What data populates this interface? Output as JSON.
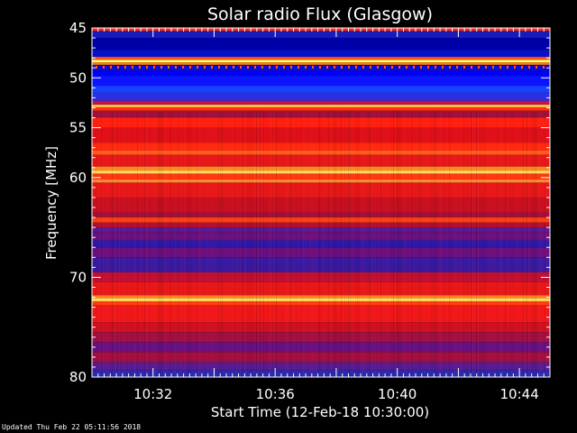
{
  "chart_data": {
    "type": "heatmap",
    "title": "Solar radio Flux (Glasgow)",
    "xlabel": "Start Time (12-Feb-18 10:30:00)",
    "ylabel": "Frequency [MHz]",
    "x_range_minutes": [
      0,
      15
    ],
    "ylim": [
      45,
      80
    ],
    "x_ticks": [
      {
        "minute": 2,
        "label": "10:32"
      },
      {
        "minute": 6,
        "label": "10:36"
      },
      {
        "minute": 10,
        "label": "10:40"
      },
      {
        "minute": 14,
        "label": "10:44"
      }
    ],
    "y_ticks": [
      {
        "value": 45,
        "label": "45"
      },
      {
        "value": 50,
        "label": "50"
      },
      {
        "value": 55,
        "label": "55"
      },
      {
        "value": 60,
        "label": "60"
      },
      {
        "value": 70,
        "label": "70"
      },
      {
        "value": 80,
        "label": "80"
      }
    ],
    "frequency_bands": [
      {
        "from": 45.0,
        "to": 45.3,
        "color": "#ff2a10"
      },
      {
        "from": 45.3,
        "to": 46.0,
        "color": "#1a1ab8"
      },
      {
        "from": 46.0,
        "to": 47.2,
        "color": "#0000a8"
      },
      {
        "from": 47.2,
        "to": 47.9,
        "color": "#0a10c8"
      },
      {
        "from": 47.9,
        "to": 48.2,
        "color": "#ff5010"
      },
      {
        "from": 48.2,
        "to": 48.45,
        "color": "#ffff70"
      },
      {
        "from": 48.45,
        "to": 48.7,
        "color": "#ff7a10"
      },
      {
        "from": 48.7,
        "to": 49.4,
        "color": "#0a0ad0"
      },
      {
        "from": 49.4,
        "to": 49.8,
        "color": "#0000ff"
      },
      {
        "from": 49.8,
        "to": 50.8,
        "color": "#0a14ff"
      },
      {
        "from": 50.8,
        "to": 51.5,
        "color": "#1840ff"
      },
      {
        "from": 51.5,
        "to": 52.3,
        "color": "#2a30e0"
      },
      {
        "from": 52.3,
        "to": 52.7,
        "color": "#c01050"
      },
      {
        "from": 52.7,
        "to": 52.95,
        "color": "#ffd040"
      },
      {
        "from": 52.95,
        "to": 53.3,
        "color": "#ff3010"
      },
      {
        "from": 53.3,
        "to": 54.0,
        "color": "#a0103a"
      },
      {
        "from": 54.0,
        "to": 55.0,
        "color": "#ff2010"
      },
      {
        "from": 55.0,
        "to": 56.5,
        "color": "#e01018"
      },
      {
        "from": 56.5,
        "to": 57.3,
        "color": "#ff2a10"
      },
      {
        "from": 57.3,
        "to": 57.7,
        "color": "#ff6018"
      },
      {
        "from": 57.7,
        "to": 58.9,
        "color": "#e81818"
      },
      {
        "from": 58.9,
        "to": 59.3,
        "color": "#ff8a20"
      },
      {
        "from": 59.3,
        "to": 59.6,
        "color": "#ffe060"
      },
      {
        "from": 59.6,
        "to": 60.2,
        "color": "#ff3810"
      },
      {
        "from": 60.2,
        "to": 60.5,
        "color": "#ff9030"
      },
      {
        "from": 60.5,
        "to": 62.0,
        "color": "#e81818"
      },
      {
        "from": 62.0,
        "to": 63.5,
        "color": "#c81020"
      },
      {
        "from": 63.5,
        "to": 64.0,
        "color": "#a0103a"
      },
      {
        "from": 64.0,
        "to": 64.5,
        "color": "#ff4010"
      },
      {
        "from": 64.5,
        "to": 65.0,
        "color": "#b01030"
      },
      {
        "from": 65.0,
        "to": 65.5,
        "color": "#5a1a90"
      },
      {
        "from": 65.5,
        "to": 66.3,
        "color": "#6a1080"
      },
      {
        "from": 66.3,
        "to": 67.0,
        "color": "#2a1aa8"
      },
      {
        "from": 67.0,
        "to": 68.0,
        "color": "#6a1080"
      },
      {
        "from": 68.0,
        "to": 69.5,
        "color": "#3a1aa0"
      },
      {
        "from": 69.5,
        "to": 70.5,
        "color": "#c01030"
      },
      {
        "from": 70.5,
        "to": 71.8,
        "color": "#e81818"
      },
      {
        "from": 71.8,
        "to": 72.1,
        "color": "#ff8a20"
      },
      {
        "from": 72.1,
        "to": 72.4,
        "color": "#ffe060"
      },
      {
        "from": 72.4,
        "to": 72.8,
        "color": "#ff4010"
      },
      {
        "from": 72.8,
        "to": 74.5,
        "color": "#f01818"
      },
      {
        "from": 74.5,
        "to": 75.5,
        "color": "#d01020"
      },
      {
        "from": 75.5,
        "to": 76.5,
        "color": "#a01040"
      },
      {
        "from": 76.5,
        "to": 77.5,
        "color": "#6a1080"
      },
      {
        "from": 77.5,
        "to": 78.5,
        "color": "#a01040"
      },
      {
        "from": 78.5,
        "to": 79.3,
        "color": "#5a1a90"
      },
      {
        "from": 79.3,
        "to": 80.0,
        "color": "#2a2ab0"
      }
    ]
  },
  "footer": {
    "text": "Updated Thu Feb 22 05:11:56 2018"
  }
}
